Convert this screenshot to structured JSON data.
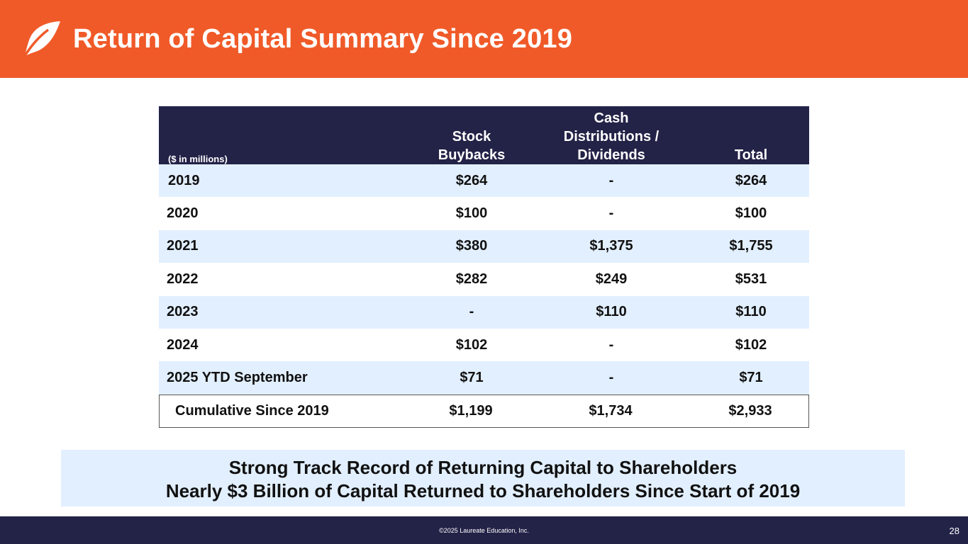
{
  "header": {
    "title": "Return of Capital Summary Since 2019",
    "logo_icon": "leaf-icon",
    "background_color": "#f05a28"
  },
  "table": {
    "units_label": "($ in millions)",
    "columns": {
      "buybacks_line1": "Stock",
      "buybacks_line2": "Buybacks",
      "dist_line1": "Cash",
      "dist_line2": "Distributions /",
      "dist_line3": "Dividends",
      "total": "Total"
    },
    "rows": [
      {
        "year": "2019",
        "buybacks": "$264",
        "distributions": "-",
        "total": "$264"
      },
      {
        "year": "2020",
        "buybacks": "$100",
        "distributions": "-",
        "total": "$100"
      },
      {
        "year": "2021",
        "buybacks": "$380",
        "distributions": "$1,375",
        "total": "$1,755"
      },
      {
        "year": "2022",
        "buybacks": "$282",
        "distributions": "$249",
        "total": "$531"
      },
      {
        "year": "2023",
        "buybacks": "-",
        "distributions": "$110",
        "total": "$110"
      },
      {
        "year": "2024",
        "buybacks": "$102",
        "distributions": "-",
        "total": "$102"
      },
      {
        "year": "2025 YTD September",
        "buybacks": "$71",
        "distributions": "-",
        "total": "$71"
      }
    ],
    "cumulative": {
      "label": "Cumulative Since 2019",
      "buybacks": "$1,199",
      "distributions": "$1,734",
      "total": "$2,933"
    },
    "header_color": "#232247",
    "shade_color": "#e2efff"
  },
  "callout": {
    "line1": "Strong Track Record of Returning Capital to Shareholders",
    "line2": "Nearly $3 Billion of Capital Returned to Shareholders Since Start of 2019"
  },
  "footer": {
    "copyright": "©2025 Laureate Education, Inc.",
    "page_number": "28"
  }
}
